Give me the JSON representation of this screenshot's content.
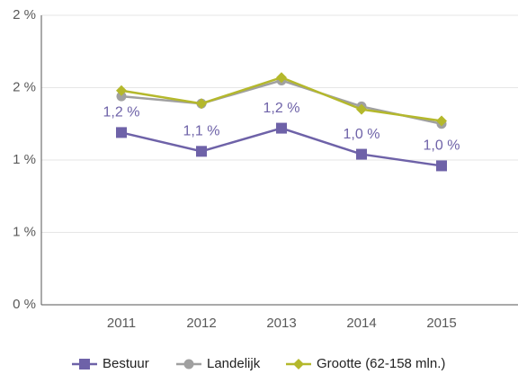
{
  "chart_data": {
    "type": "line",
    "categories": [
      "2011",
      "2012",
      "2013",
      "2014",
      "2015"
    ],
    "series": [
      {
        "name": "Bestuur",
        "color": "#6e62a8",
        "marker": "square",
        "values": [
          1.19,
          1.06,
          1.22,
          1.04,
          0.96
        ],
        "value_labels": [
          "1,2 %",
          "1,1 %",
          "1,2 %",
          "1,0 %",
          "1,0 %"
        ]
      },
      {
        "name": "Landelijk",
        "color": "#a0a0a0",
        "marker": "circle",
        "values": [
          1.44,
          1.39,
          1.55,
          1.37,
          1.25
        ]
      },
      {
        "name": "Grootte (62-158 mln.)",
        "color": "#b4b82c",
        "marker": "diamond",
        "values": [
          1.48,
          1.39,
          1.57,
          1.35,
          1.27
        ]
      }
    ],
    "ylim": [
      0,
      2
    ],
    "yticks": [
      {
        "value": 0,
        "label": "0 %"
      },
      {
        "value": 0.5,
        "label": "1 %"
      },
      {
        "value": 1,
        "label": "1 %"
      },
      {
        "value": 1.5,
        "label": "2 %"
      },
      {
        "value": 2,
        "label": "2 %"
      }
    ],
    "grid": true,
    "legend": "bottom"
  }
}
